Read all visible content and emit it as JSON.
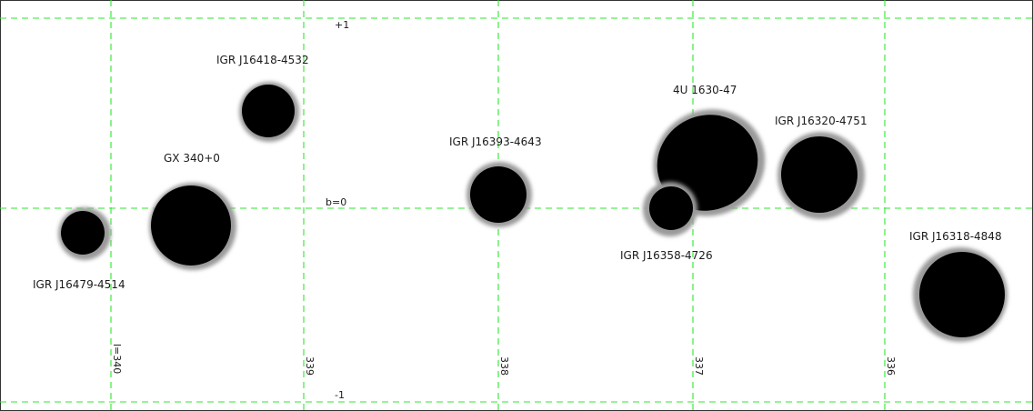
{
  "colors": {
    "background": "#ffffff",
    "grid": "#2ee82e",
    "source": "#000000",
    "text": "#1a1a1a"
  },
  "grid": {
    "longitude_labels": [
      "l=340",
      "339",
      "338",
      "337",
      "336"
    ],
    "latitude_labels": [
      "+1",
      "b=0",
      "-1"
    ]
  },
  "sources": [
    {
      "name": "IGR J16418-4532"
    },
    {
      "name": "GX 340+0"
    },
    {
      "name": "IGR J16479-4514"
    },
    {
      "name": "IGR J16393-4643"
    },
    {
      "name": "4U 1630-47"
    },
    {
      "name": "IGR J16358-4726"
    },
    {
      "name": "IGR J16320-4751"
    },
    {
      "name": "IGR J16318-4848"
    }
  ]
}
